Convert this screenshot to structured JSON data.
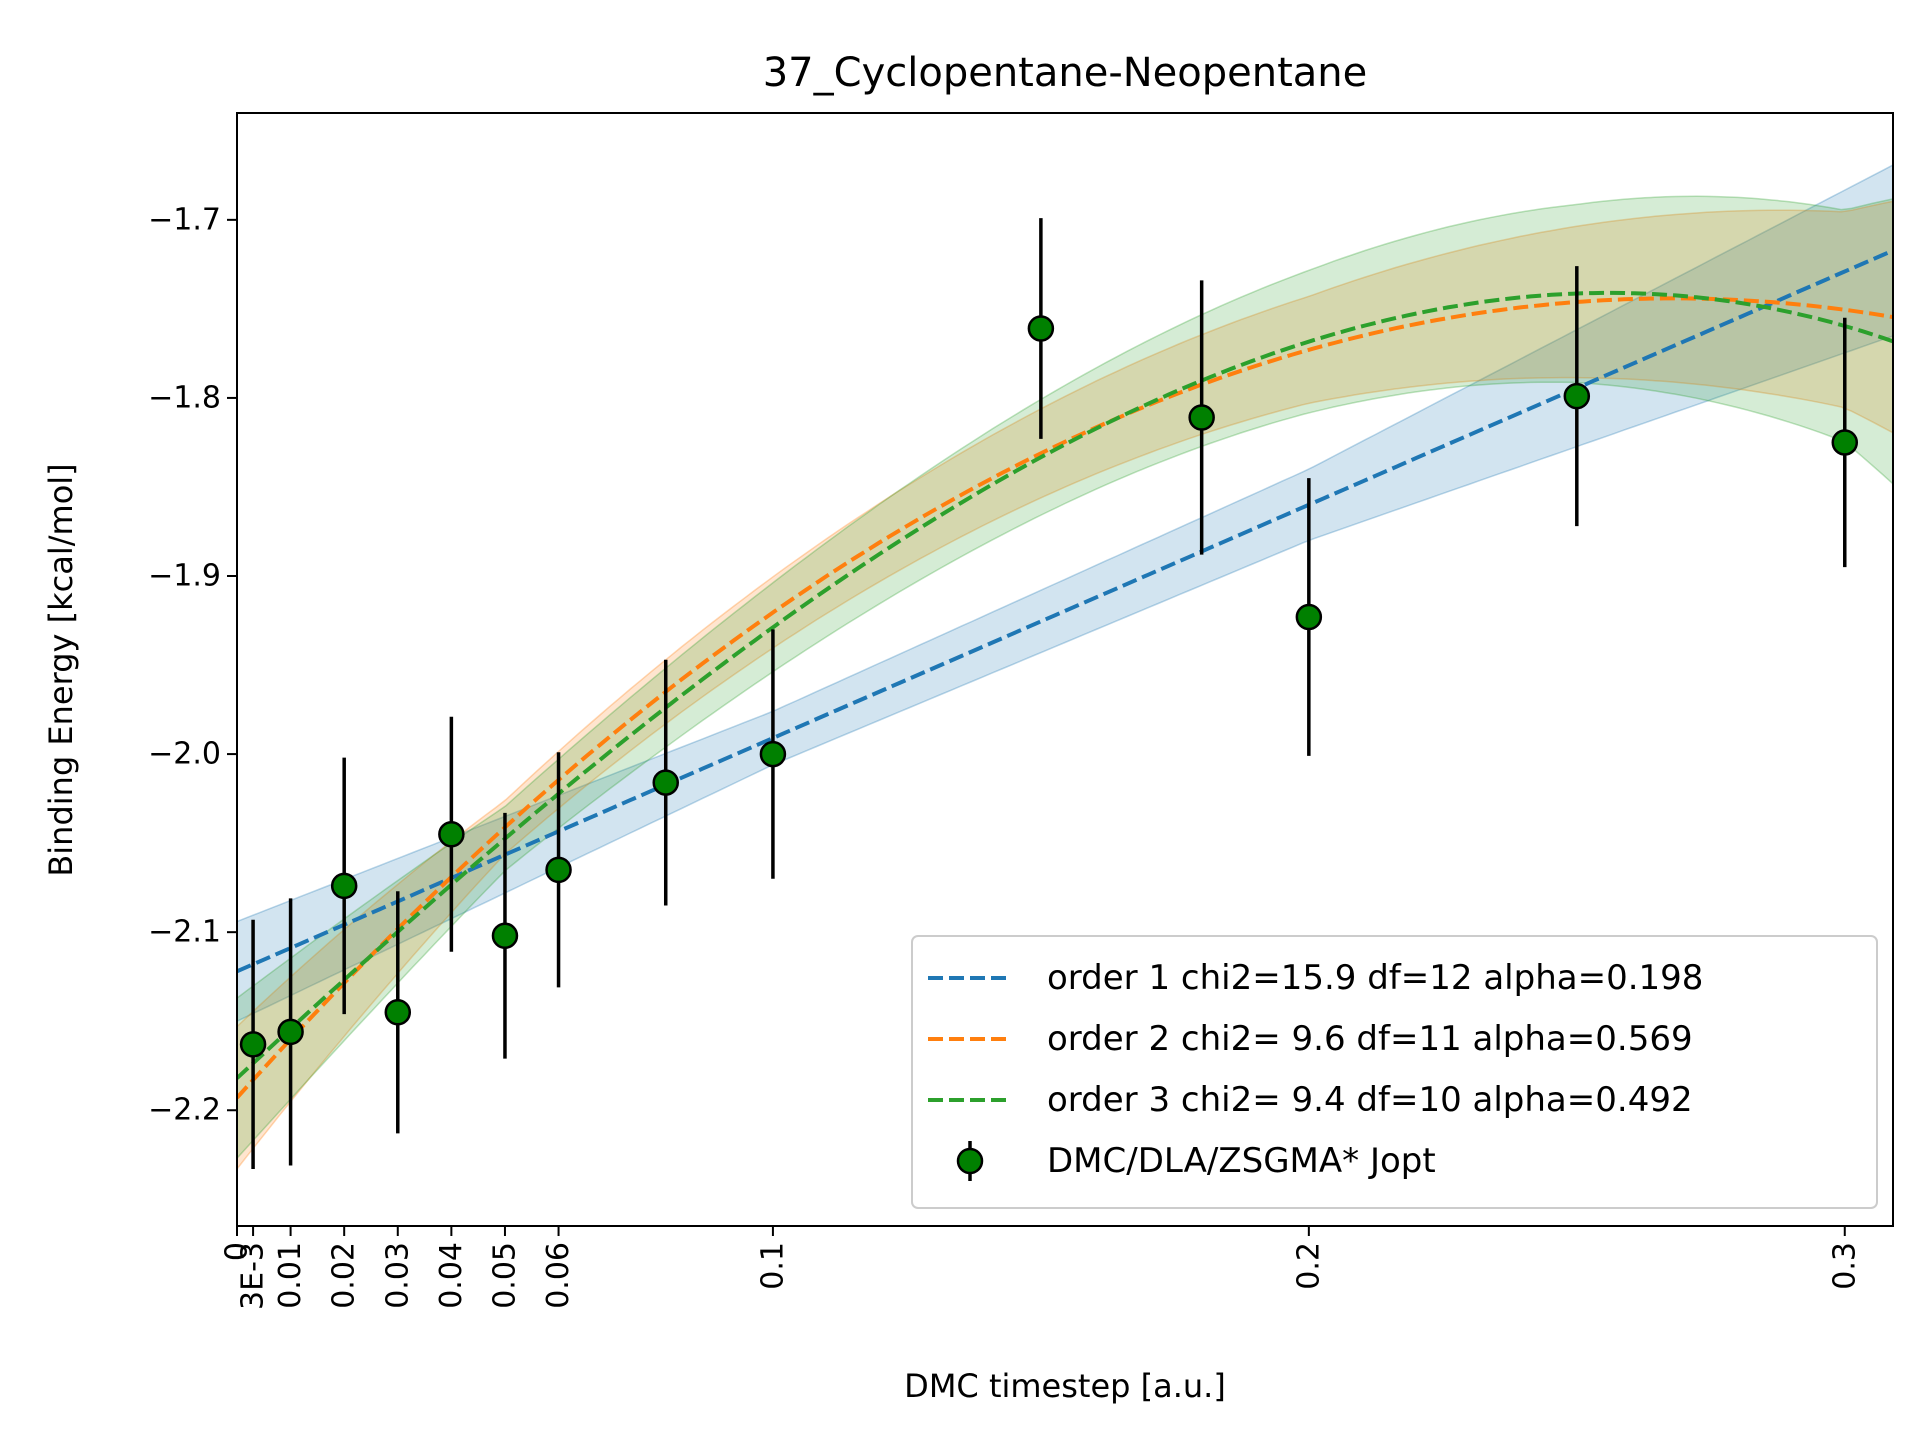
{
  "chart_data": {
    "type": "scatter",
    "title": "37_Cyclopentane-Neopentane",
    "xlabel": "DMC timestep [a.u.]",
    "ylabel": "Binding Energy [kcal/mol]",
    "xlim": [
      0,
      0.309
    ],
    "ylim": [
      -2.265,
      -1.64
    ],
    "x_ticks": [
      {
        "value": 0,
        "label": "0"
      },
      {
        "value": 0.003,
        "label": "3E-3"
      },
      {
        "value": 0.01,
        "label": "0.01"
      },
      {
        "value": 0.02,
        "label": "0.02"
      },
      {
        "value": 0.03,
        "label": "0.03"
      },
      {
        "value": 0.04,
        "label": "0.04"
      },
      {
        "value": 0.05,
        "label": "0.05"
      },
      {
        "value": 0.06,
        "label": "0.06"
      },
      {
        "value": 0.1,
        "label": "0.1"
      },
      {
        "value": 0.2,
        "label": "0.2"
      },
      {
        "value": 0.3,
        "label": "0.3"
      }
    ],
    "y_ticks": [
      {
        "value": -2.2,
        "label": "−2.2"
      },
      {
        "value": -2.1,
        "label": "−2.1"
      },
      {
        "value": -2.0,
        "label": "−2.0"
      },
      {
        "value": -1.9,
        "label": "−1.9"
      },
      {
        "value": -1.8,
        "label": "−1.8"
      },
      {
        "value": -1.7,
        "label": "−1.7"
      }
    ],
    "grid": false,
    "legend_position": "lower right",
    "data_series": {
      "name": "DMC/DLA/ZSGMA* Jopt",
      "color": "#008000",
      "points": [
        {
          "x": 0.003,
          "y": -2.163,
          "err": 0.07
        },
        {
          "x": 0.01,
          "y": -2.156,
          "err": 0.075
        },
        {
          "x": 0.02,
          "y": -2.074,
          "err": 0.072
        },
        {
          "x": 0.03,
          "y": -2.145,
          "err": 0.068
        },
        {
          "x": 0.04,
          "y": -2.045,
          "err": 0.066
        },
        {
          "x": 0.05,
          "y": -2.102,
          "err": 0.069
        },
        {
          "x": 0.06,
          "y": -2.065,
          "err": 0.066
        },
        {
          "x": 0.08,
          "y": -2.016,
          "err": 0.069
        },
        {
          "x": 0.1,
          "y": -2.0,
          "err": 0.07
        },
        {
          "x": 0.15,
          "y": -1.761,
          "err": 0.062
        },
        {
          "x": 0.18,
          "y": -1.811,
          "err": 0.077
        },
        {
          "x": 0.2,
          "y": -1.923,
          "err": 0.078
        },
        {
          "x": 0.25,
          "y": -1.799,
          "err": 0.073
        },
        {
          "x": 0.3,
          "y": -1.825,
          "err": 0.07
        }
      ]
    },
    "fits": [
      {
        "name": "order 1 chi2=15.9 df=12 alpha=0.198",
        "color": "#1f77b4",
        "style": "dashed",
        "coefficients": [
          -2.122,
          1.31
        ],
        "band": {
          "x": [
            0,
            0.1,
            0.2,
            0.309
          ],
          "half_width": [
            0.028,
            0.015,
            0.02,
            0.048
          ]
        }
      },
      {
        "name": "order 2 chi2= 9.6 df=11 alpha=0.569",
        "color": "#ff7f0e",
        "style": "dashed",
        "coefficients": [
          -2.193,
          3.35,
          -6.25
        ],
        "band": {
          "x": [
            0,
            0.05,
            0.1,
            0.2,
            0.3,
            0.309
          ],
          "half_width": [
            0.04,
            0.015,
            0.02,
            0.03,
            0.055,
            0.065
          ]
        }
      },
      {
        "name": "order 3 chi2= 9.4 df=10 alpha=0.492",
        "color": "#2ca02c",
        "style": "dashed",
        "coefficients": [
          -2.182,
          2.8,
          -1.7,
          -9.8
        ],
        "band": {
          "x": [
            0,
            0.05,
            0.1,
            0.2,
            0.25,
            0.3,
            0.309
          ],
          "half_width": [
            0.045,
            0.018,
            0.025,
            0.04,
            0.05,
            0.065,
            0.08
          ]
        }
      }
    ]
  }
}
